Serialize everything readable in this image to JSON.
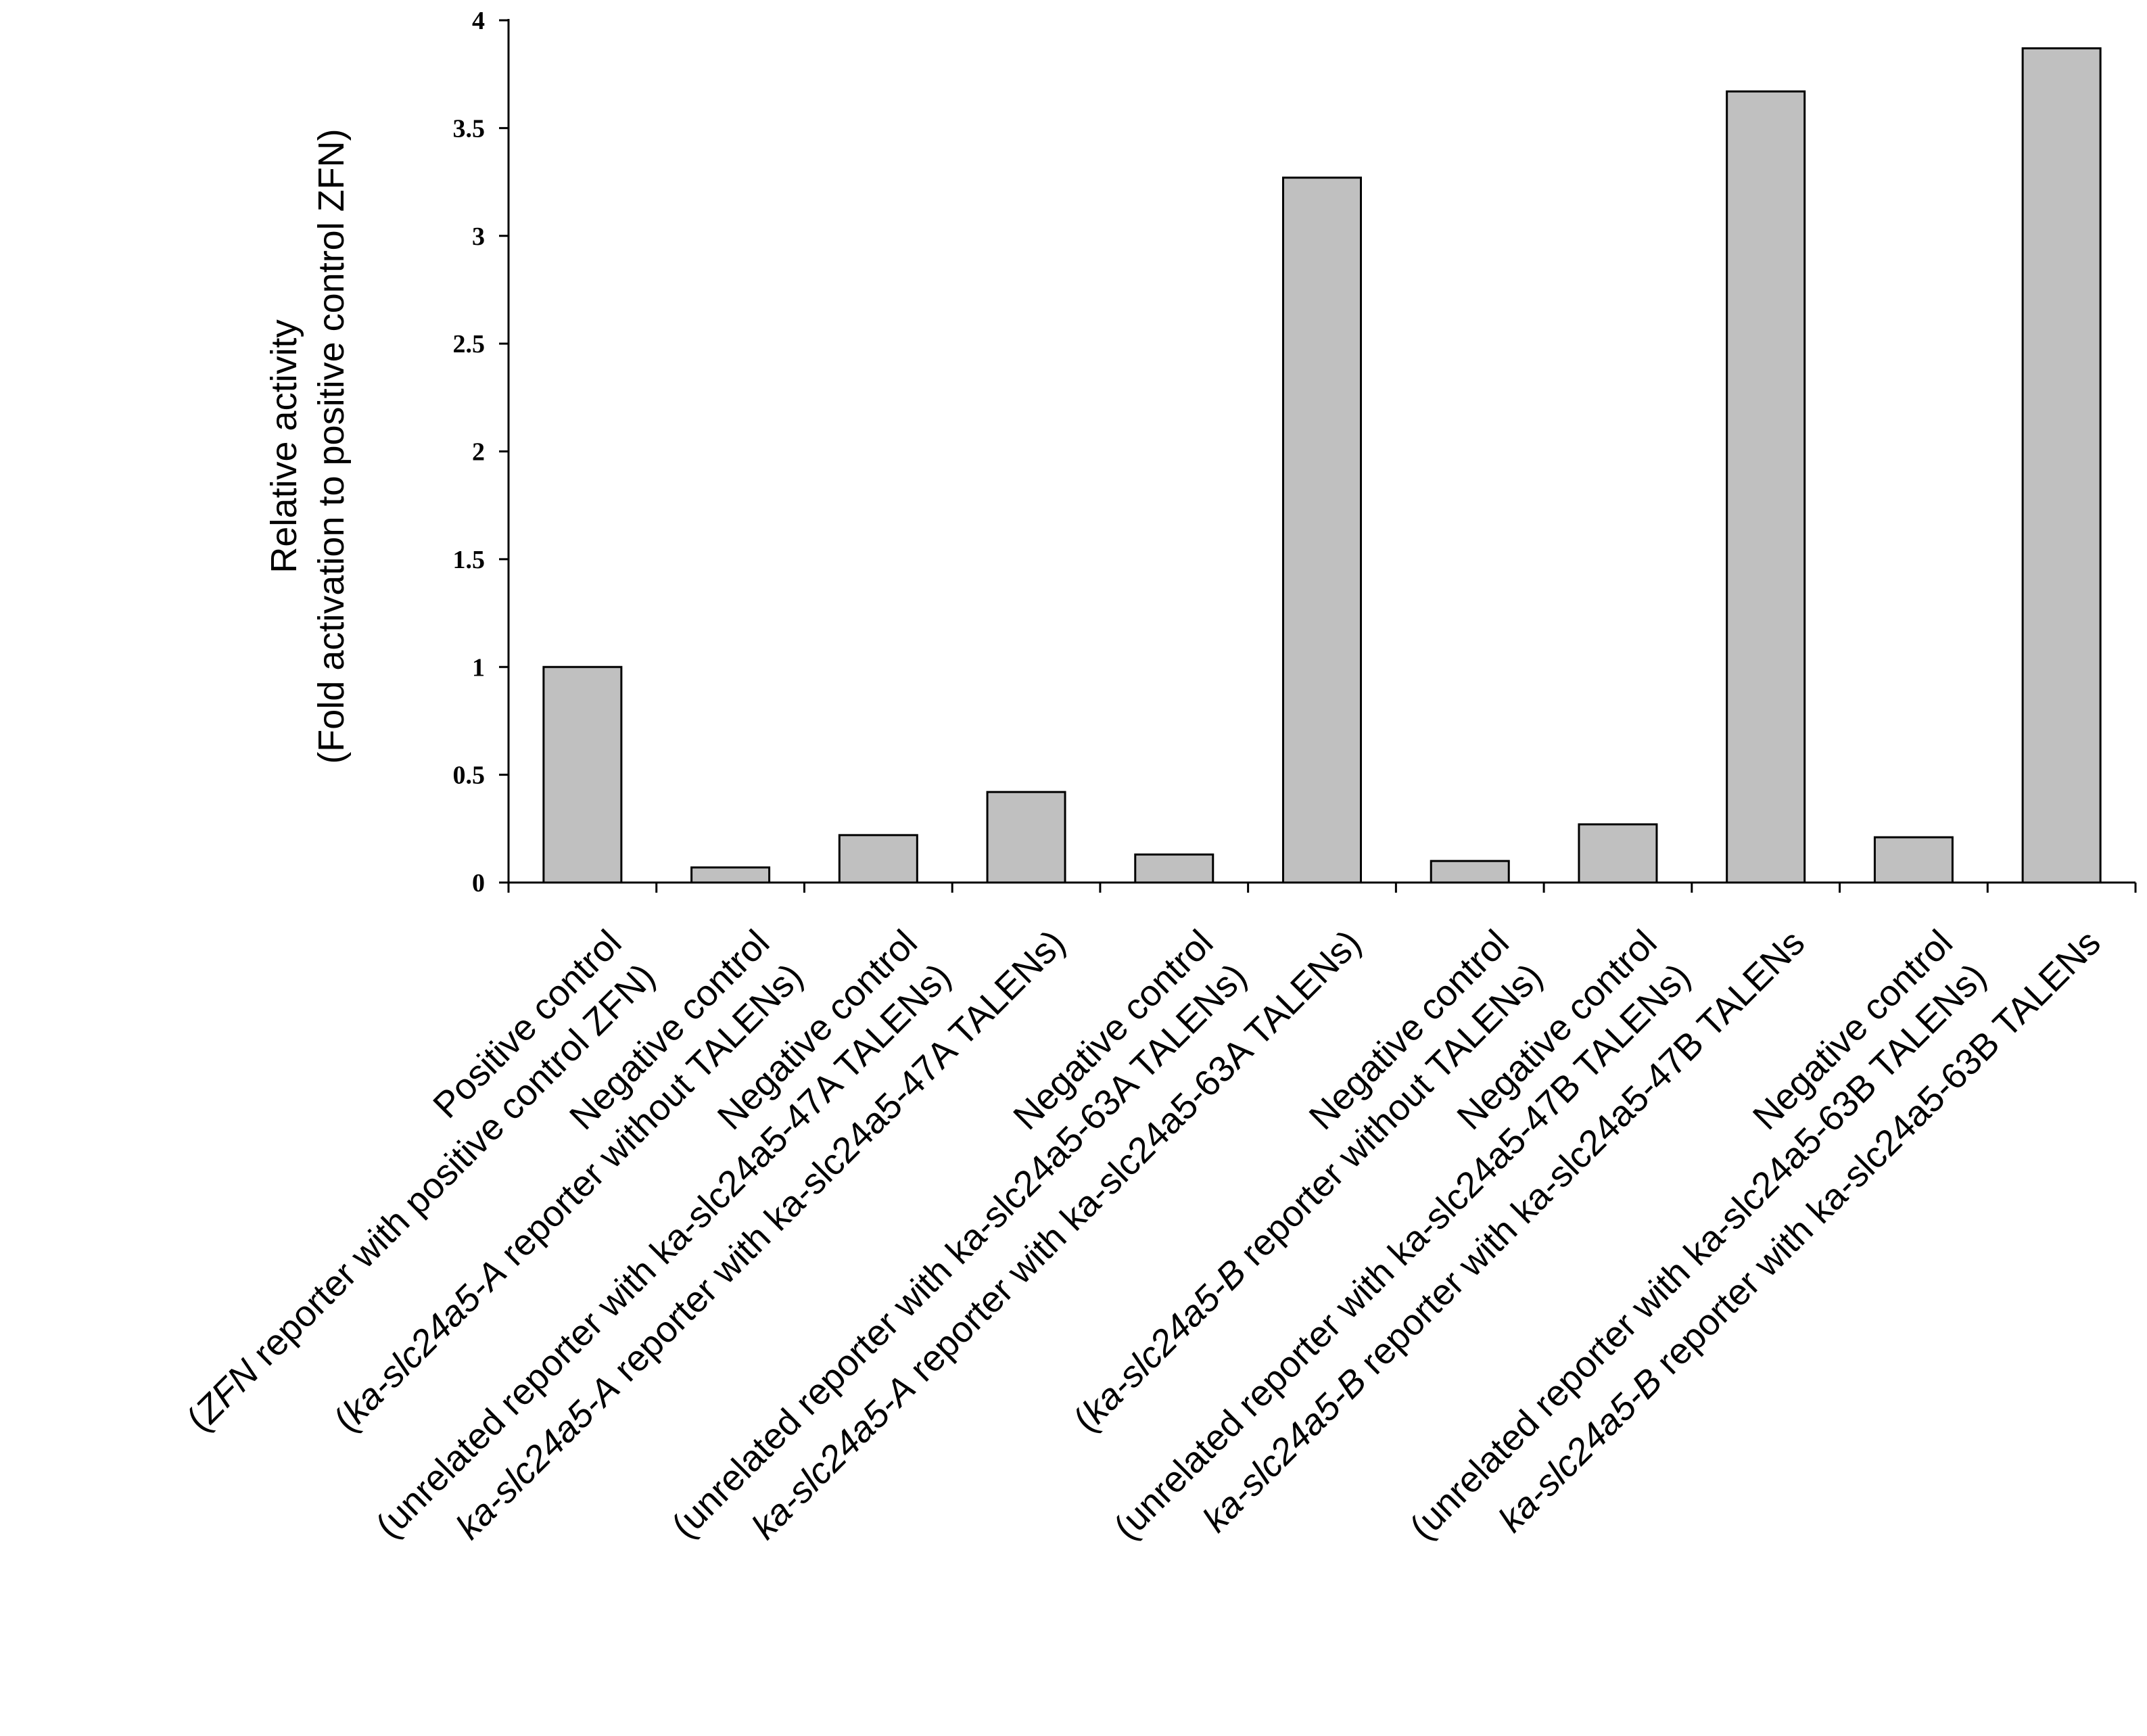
{
  "chart_data": {
    "type": "bar",
    "title": "",
    "xlabel": "",
    "ylabel_lines": [
      "Relative activity",
      "(Fold activation to positive control ZFN)"
    ],
    "ylim": [
      0,
      4
    ],
    "yticks": [
      "0",
      "0.5",
      "1",
      "1.5",
      "2",
      "2.5",
      "3",
      "3.5",
      "4"
    ],
    "grid": false,
    "legend": "none",
    "colors": {
      "bar_fill": "#c0c0c0",
      "bar_stroke": "#000000"
    },
    "categories": [
      {
        "line1": [
          {
            "text": "Positive control",
            "italic": false
          }
        ],
        "line2": [
          {
            "text": "(",
            "italic": false
          },
          {
            "text": "ZFN",
            "italic": true
          },
          {
            "text": " reporter with positive control ZFN)",
            "italic": false
          }
        ]
      },
      {
        "line1": [
          {
            "text": "Negative control",
            "italic": false
          }
        ],
        "line2": [
          {
            "text": "(",
            "italic": false
          },
          {
            "text": "ka-slc24a5-A",
            "italic": true
          },
          {
            "text": " reporter without TALENs)",
            "italic": false
          }
        ]
      },
      {
        "line1": [
          {
            "text": "Negative control",
            "italic": false
          }
        ],
        "line2": [
          {
            "text": "(unrelated reporter with ka-slc24a5-47A TALENs)",
            "italic": false
          }
        ]
      },
      {
        "line1": [],
        "line2": [
          {
            "text": "ka-slc24a5-A",
            "italic": true
          },
          {
            "text": " reporter with ka-slc24a5-47A TALENs)",
            "italic": false
          }
        ]
      },
      {
        "line1": [
          {
            "text": "Negative control",
            "italic": false
          }
        ],
        "line2": [
          {
            "text": "(unrelated reporter with ka-slc24a5-63A TALENs)",
            "italic": false
          }
        ]
      },
      {
        "line1": [],
        "line2": [
          {
            "text": "ka-slc24a5-A",
            "italic": true
          },
          {
            "text": " reporter with ka-slc24a5-63A TALENs)",
            "italic": false
          }
        ]
      },
      {
        "line1": [
          {
            "text": "Negative control",
            "italic": false
          }
        ],
        "line2": [
          {
            "text": "(",
            "italic": false
          },
          {
            "text": "ka-slc24a5-B",
            "italic": true
          },
          {
            "text": " reporter without TALENs)",
            "italic": false
          }
        ]
      },
      {
        "line1": [
          {
            "text": "Negative control",
            "italic": false
          }
        ],
        "line2": [
          {
            "text": "(unrelated reporter with ka-slc24a5-47B TALENs)",
            "italic": false
          }
        ]
      },
      {
        "line1": [],
        "line2": [
          {
            "text": "ka-slc24a5-B",
            "italic": true
          },
          {
            "text": " reporter with ka-slc24a5-47B TALENs",
            "italic": false
          }
        ]
      },
      {
        "line1": [
          {
            "text": "Negative control",
            "italic": false
          }
        ],
        "line2": [
          {
            "text": "(unrelated reporter with ka-slc24a5-63B TALENs)",
            "italic": false
          }
        ]
      },
      {
        "line1": [],
        "line2": [
          {
            "text": "ka-slc24a5-B",
            "italic": true
          },
          {
            "text": " reporter with ka-slc24a5-63B TALENs",
            "italic": false
          }
        ]
      }
    ],
    "values": [
      1.0,
      0.07,
      0.22,
      0.42,
      0.13,
      3.27,
      0.1,
      0.27,
      3.67,
      0.21,
      3.87
    ]
  }
}
